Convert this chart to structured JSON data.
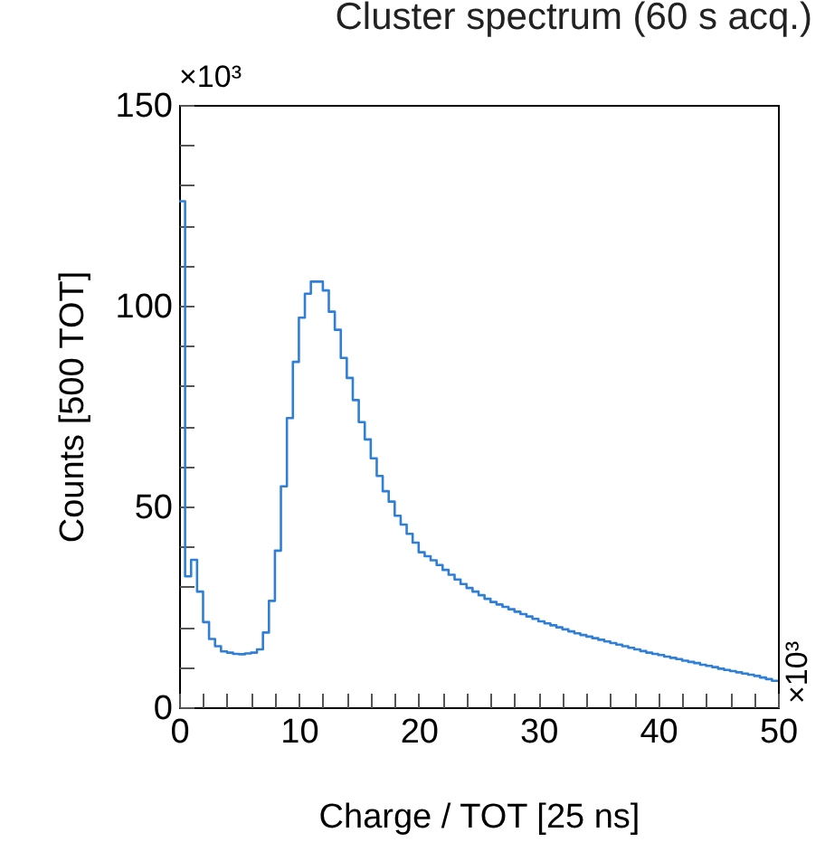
{
  "chart_data": {
    "type": "histogram",
    "title": "Cluster spectrum (60 s acq.)",
    "xlabel": "Charge / TOT [25 ns]",
    "ylabel": "Counts [500 TOT]",
    "annotations": [
      "×10³",
      "×10³"
    ],
    "color": "#2f7fd8",
    "bins": [
      0,
      0.5,
      1,
      1.5,
      2,
      2.5,
      3,
      3.5,
      4,
      4.5,
      5,
      5.5,
      6,
      6.5,
      7,
      7.5,
      8,
      8.5,
      9,
      9.5,
      10,
      10.5,
      11,
      11.5,
      12,
      12.5,
      13,
      13.5,
      14,
      14.5,
      15,
      15.5,
      16,
      16.5,
      17,
      17.5,
      18,
      18.5,
      19,
      19.5,
      20,
      20.5,
      21,
      21.5,
      22,
      22.5,
      23,
      23.5,
      24,
      24.5,
      25,
      25.5,
      26,
      26.5,
      27,
      27.5,
      28,
      28.5,
      29,
      29.5,
      30,
      30.5,
      31,
      31.5,
      32,
      32.5,
      33,
      33.5,
      34,
      34.5,
      35,
      35.5,
      36,
      36.5,
      37,
      37.5,
      38,
      38.5,
      39,
      39.5,
      40,
      40.5,
      41,
      41.5,
      42,
      42.5,
      43,
      43.5,
      44,
      44.5,
      45,
      45.5,
      46,
      46.5,
      47,
      47.5,
      48,
      48.5,
      49,
      49.5,
      50
    ],
    "values": [
      126,
      32.6,
      36.7,
      28.8,
      21.2,
      17,
      15.2,
      13.9,
      13.6,
      13.3,
      13.2,
      13.4,
      13.6,
      14.4,
      18.6,
      26.5,
      39,
      55,
      72,
      86,
      97,
      103,
      106,
      106,
      103.8,
      98.5,
      94,
      87,
      82,
      76.5,
      71,
      66.7,
      62,
      57.6,
      53.8,
      51.2,
      47.7,
      45.5,
      43.2,
      41,
      38.6,
      37.6,
      36.6,
      35.4,
      34.2,
      33,
      31.8,
      30.7,
      29.7,
      28.8,
      27.9,
      27,
      26.2,
      25.6,
      25,
      24.4,
      23.8,
      23.2,
      22.6,
      22,
      21.4,
      20.9,
      20.4,
      19.9,
      19.4,
      18.9,
      18.4,
      18,
      17.6,
      17.2,
      16.8,
      16.4,
      16,
      15.6,
      15.2,
      14.8,
      14.4,
      14,
      13.6,
      13.3,
      13,
      12.6,
      12.3,
      12,
      11.6,
      11.3,
      11,
      10.6,
      10.3,
      10,
      9.6,
      9.3,
      9,
      8.7,
      8.4,
      8.1,
      7.8,
      7.4,
      7,
      6.6
    ],
    "xlim": [
      0,
      50
    ],
    "xticks": [
      0,
      {
        "value": 2,
        "label": null
      },
      {
        "value": 4,
        "label": null
      },
      {
        "value": 6,
        "label": null
      },
      {
        "value": 8,
        "label": null
      },
      10,
      {
        "value": 12,
        "label": null
      },
      {
        "value": 14,
        "label": null
      },
      {
        "value": 16,
        "label": null
      },
      {
        "value": 18,
        "label": null
      },
      20,
      {
        "value": 22,
        "label": null
      },
      {
        "value": 24,
        "label": null
      },
      {
        "value": 26,
        "label": null
      },
      {
        "value": 28,
        "label": null
      },
      30,
      {
        "value": 32,
        "label": null
      },
      {
        "value": 34,
        "label": null
      },
      {
        "value": 36,
        "label": null
      },
      {
        "value": 38,
        "label": null
      },
      40,
      {
        "value": 42,
        "label": null
      },
      {
        "value": 44,
        "label": null
      },
      {
        "value": 46,
        "label": null
      },
      {
        "value": 48,
        "label": null
      },
      50
    ],
    "ylim": [
      0,
      150
    ],
    "yticks": [
      0,
      {
        "value": 10,
        "label": null
      },
      {
        "value": 20,
        "label": null
      },
      {
        "value": 30,
        "label": null
      },
      {
        "value": 40,
        "label": null
      },
      50,
      {
        "value": 60,
        "label": null
      },
      {
        "value": 70,
        "label": null
      },
      {
        "value": 80,
        "label": null
      },
      {
        "value": 90,
        "label": null
      },
      100,
      {
        "value": 110,
        "label": null
      },
      {
        "value": 120,
        "label": null
      },
      {
        "value": 130,
        "label": null
      },
      {
        "value": 140,
        "label": null
      },
      150
    ],
    "grid": false
  }
}
